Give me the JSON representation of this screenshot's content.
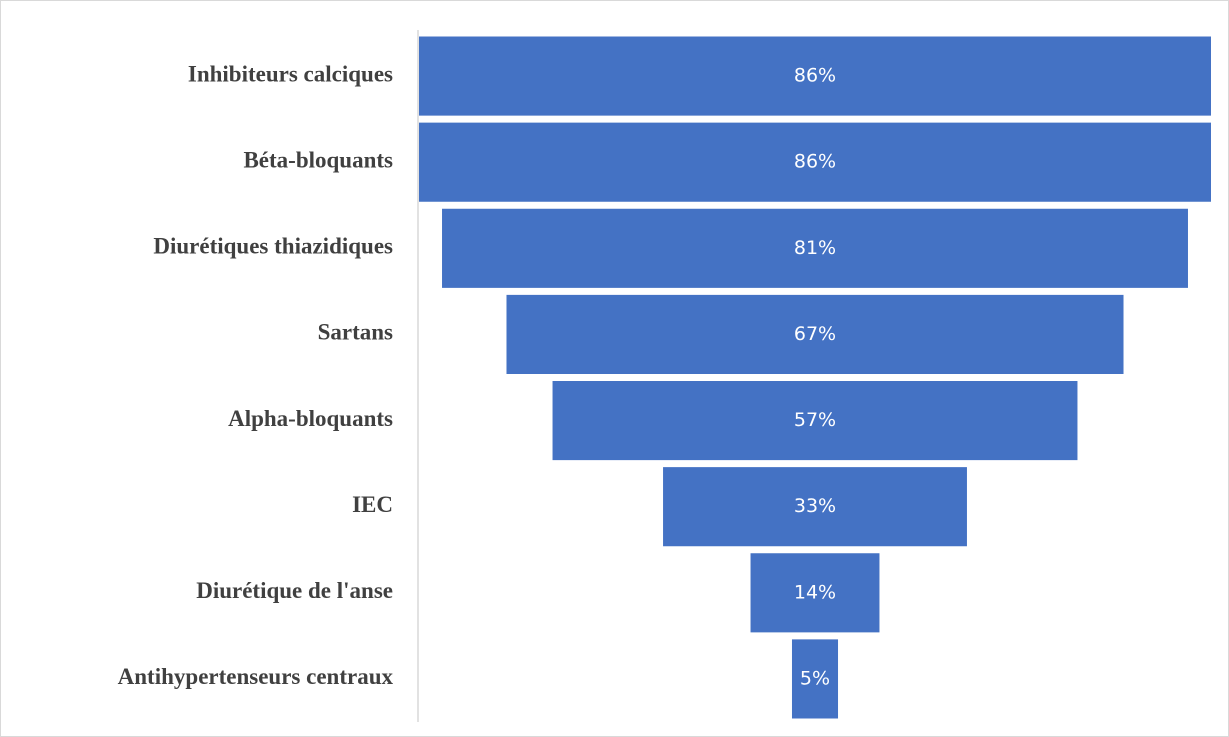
{
  "chart_data": {
    "type": "funnel",
    "categories": [
      "Inhibiteurs calciques",
      "Béta-bloquants",
      "Diurétiques thiazidiques",
      "Sartans",
      "Alpha-bloquants",
      "IEC",
      "Diurétique de l'anse",
      "Antihypertenseurs centraux"
    ],
    "values": [
      86,
      86,
      81,
      67,
      57,
      33,
      14,
      5
    ],
    "value_labels": [
      "86%",
      "86%",
      "81%",
      "67%",
      "57%",
      "33%",
      "14%",
      "5%"
    ],
    "color": "#4472c4"
  }
}
